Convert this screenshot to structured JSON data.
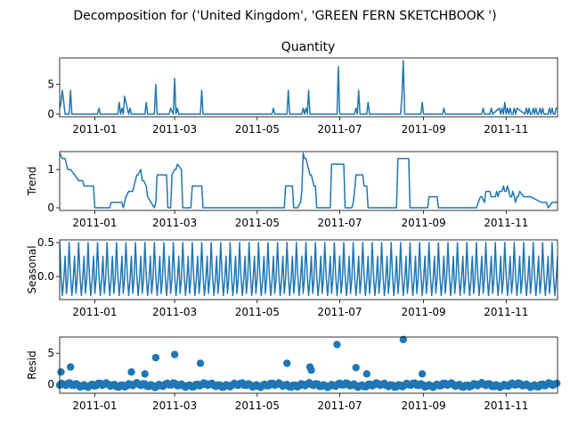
{
  "figure": {
    "title": "Decomposition for ('United Kingdom', 'GREEN FERN SKETCHBOOK ')"
  },
  "chart_data": [
    {
      "type": "line",
      "panel": "observed",
      "title": "Quantity",
      "ylabel": "",
      "xlim": [
        "2010-12-06",
        "2011-12-09"
      ],
      "ylim": [
        -0.45,
        9.45
      ],
      "yticks": [
        0,
        5
      ],
      "xticks": [
        "2011-01-01",
        "2011-03-01",
        "2011-05-01",
        "2011-07-01",
        "2011-09-01",
        "2011-11-01"
      ],
      "xtick_labels": [
        "2011-01",
        "2011-03",
        "2011-05",
        "2011-07",
        "2011-09",
        "2011-11"
      ],
      "color": "#1f77b4",
      "series": [
        {
          "x": [
            "2010-12-06",
            "2010-12-07",
            "2010-12-08",
            "2010-12-09",
            "2010-12-10",
            "2010-12-11",
            "2010-12-12",
            "2010-12-13",
            "2010-12-14",
            "2010-12-15",
            "2011-01-03",
            "2011-01-04",
            "2011-01-05",
            "2011-01-18",
            "2011-01-19",
            "2011-01-20",
            "2011-01-21",
            "2011-01-22",
            "2011-01-23",
            "2011-01-26",
            "2011-01-27",
            "2011-01-28",
            "2011-02-07",
            "2011-02-08",
            "2011-02-09",
            "2011-02-14",
            "2011-02-15",
            "2011-02-16",
            "2011-02-25",
            "2011-02-26",
            "2011-02-28",
            "2011-03-01",
            "2011-03-02",
            "2011-03-03",
            "2011-03-04",
            "2011-03-05",
            "2011-03-06",
            "2011-03-20",
            "2011-03-21",
            "2011-03-22",
            "2011-05-12",
            "2011-05-13",
            "2011-05-14",
            "2011-05-23",
            "2011-05-24",
            "2011-05-25",
            "2011-06-03",
            "2011-06-04",
            "2011-06-05",
            "2011-06-06",
            "2011-06-07",
            "2011-06-08",
            "2011-06-09",
            "2011-06-10",
            "2011-06-29",
            "2011-06-30",
            "2011-07-01",
            "2011-07-12",
            "2011-07-13",
            "2011-07-14",
            "2011-07-15",
            "2011-07-16",
            "2011-07-17",
            "2011-07-21",
            "2011-07-22",
            "2011-07-23",
            "2011-08-15",
            "2011-08-16",
            "2011-08-17",
            "2011-08-18",
            "2011-08-19",
            "2011-08-30",
            "2011-08-31",
            "2011-09-01",
            "2011-09-15",
            "2011-09-16",
            "2011-09-17",
            "2011-10-14",
            "2011-10-15",
            "2011-10-16",
            "2011-10-20",
            "2011-10-21",
            "2011-10-22",
            "2011-10-27",
            "2011-10-28",
            "2011-10-29",
            "2011-10-30",
            "2011-10-31",
            "2011-11-01",
            "2011-11-02",
            "2011-11-03",
            "2011-11-04",
            "2011-11-05",
            "2011-11-06",
            "2011-11-07",
            "2011-11-08",
            "2011-11-09",
            "2011-11-15",
            "2011-11-16",
            "2011-11-17",
            "2011-11-18",
            "2011-11-19",
            "2011-11-20",
            "2011-11-21",
            "2011-11-22",
            "2011-11-23",
            "2011-11-24",
            "2011-11-25",
            "2011-11-26",
            "2011-11-27",
            "2011-11-28",
            "2011-11-29",
            "2011-11-30",
            "2011-12-01",
            "2011-12-02",
            "2011-12-03",
            "2011-12-04",
            "2011-12-05",
            "2011-12-06",
            "2011-12-07",
            "2011-12-08",
            "2011-12-09"
          ],
          "y": [
            1,
            2,
            4,
            2,
            0,
            0,
            0,
            0,
            4,
            0,
            0,
            1,
            0,
            0,
            2,
            0,
            1,
            0,
            3,
            0,
            1,
            0,
            0,
            2,
            0,
            0,
            5,
            0,
            0,
            1,
            0,
            6,
            0,
            1,
            0,
            0,
            0,
            0,
            4,
            0,
            0,
            1,
            0,
            0,
            4,
            0,
            0,
            1,
            0,
            1,
            0,
            4,
            0,
            0,
            0,
            8,
            0,
            0,
            1,
            0,
            4,
            0,
            0,
            0,
            2,
            0,
            0,
            3,
            9,
            0,
            0,
            0,
            2,
            0,
            0,
            1,
            0,
            0,
            1,
            0,
            0,
            1,
            0,
            1,
            0,
            1,
            0,
            2,
            0,
            1,
            0,
            1,
            0,
            0,
            1,
            0,
            1,
            0,
            1,
            0,
            1,
            0,
            0,
            1,
            0,
            1,
            0,
            0,
            1,
            0,
            1,
            0,
            0,
            0,
            0,
            1,
            0,
            1,
            0,
            0,
            1,
            1
          ]
        }
      ]
    },
    {
      "type": "line",
      "panel": "trend",
      "title": "",
      "ylabel": "Trend",
      "xlim": [
        "2010-12-06",
        "2011-12-09"
      ],
      "ylim": [
        -0.07,
        1.47
      ],
      "yticks": [
        0,
        1
      ],
      "xticks": [
        "2011-01-01",
        "2011-03-01",
        "2011-05-01",
        "2011-07-01",
        "2011-09-01",
        "2011-11-01"
      ],
      "xtick_labels": [
        "2011-01",
        "2011-03",
        "2011-05",
        "2011-07",
        "2011-09",
        "2011-11"
      ],
      "color": "#1f77b4",
      "series": [
        {
          "x": [
            "2010-12-06",
            "2010-12-08",
            "2010-12-10",
            "2010-12-12",
            "2010-12-14",
            "2010-12-17",
            "2010-12-20",
            "2010-12-21",
            "2010-12-23",
            "2010-12-24",
            "2010-12-31",
            "2011-01-01",
            "2011-01-05",
            "2011-01-06",
            "2011-01-12",
            "2011-01-13",
            "2011-01-18",
            "2011-01-19",
            "2011-01-21",
            "2011-01-22",
            "2011-01-24",
            "2011-01-26",
            "2011-01-29",
            "2011-02-01",
            "2011-02-02",
            "2011-02-04",
            "2011-02-05",
            "2011-02-06",
            "2011-02-08",
            "2011-02-09",
            "2011-02-14",
            "2011-02-15",
            "2011-02-16",
            "2011-02-17",
            "2011-02-23",
            "2011-02-24",
            "2011-02-26",
            "2011-02-27",
            "2011-03-01",
            "2011-03-02",
            "2011-03-03",
            "2011-03-06",
            "2011-03-07",
            "2011-03-13",
            "2011-03-14",
            "2011-03-21",
            "2011-03-22",
            "2011-05-13",
            "2011-05-14",
            "2011-05-21",
            "2011-05-22",
            "2011-05-23",
            "2011-05-27",
            "2011-05-28",
            "2011-05-31",
            "2011-06-02",
            "2011-06-03",
            "2011-06-04",
            "2011-06-05",
            "2011-06-06",
            "2011-06-09",
            "2011-06-10",
            "2011-06-12",
            "2011-06-13",
            "2011-06-14",
            "2011-06-17",
            "2011-06-18",
            "2011-06-24",
            "2011-06-25",
            "2011-07-04",
            "2011-07-05",
            "2011-07-10",
            "2011-07-11",
            "2011-07-12",
            "2011-07-13",
            "2011-07-18",
            "2011-07-19",
            "2011-07-21",
            "2011-07-22",
            "2011-07-26",
            "2011-07-27",
            "2011-08-12",
            "2011-08-13",
            "2011-08-21",
            "2011-08-22",
            "2011-08-28",
            "2011-08-29",
            "2011-09-04",
            "2011-09-05",
            "2011-09-11",
            "2011-09-12",
            "2011-09-18",
            "2011-09-19",
            "2011-10-09",
            "2011-10-10",
            "2011-10-13",
            "2011-10-14",
            "2011-10-16",
            "2011-10-17",
            "2011-10-20",
            "2011-10-21",
            "2011-10-24",
            "2011-10-25",
            "2011-10-26",
            "2011-10-27",
            "2011-10-29",
            "2011-10-30",
            "2011-10-31",
            "2011-11-01",
            "2011-11-02",
            "2011-11-03",
            "2011-11-04",
            "2011-11-05",
            "2011-11-06",
            "2011-11-07",
            "2011-11-08",
            "2011-11-09",
            "2011-11-10",
            "2011-11-11",
            "2011-11-14",
            "2011-11-15",
            "2011-11-18",
            "2011-11-19",
            "2011-11-27",
            "2011-11-28",
            "2011-12-01",
            "2011-12-02",
            "2011-12-05",
            "2011-12-06",
            "2011-12-09"
          ],
          "y": [
            1.43,
            1.29,
            1.29,
            1.0,
            1.0,
            0.86,
            0.71,
            0.71,
            0.71,
            0.57,
            0.57,
            0.0,
            0.0,
            0.0,
            0.0,
            0.14,
            0.14,
            0.14,
            0.14,
            0.0,
            0.29,
            0.43,
            0.43,
            0.86,
            0.86,
            1.0,
            0.71,
            0.71,
            0.57,
            0.29,
            0.0,
            0.14,
            0.86,
            0.86,
            0.86,
            0.0,
            0.0,
            0.86,
            1.0,
            1.0,
            1.14,
            1.0,
            0.0,
            0.0,
            0.57,
            0.57,
            0.0,
            0.0,
            0.0,
            0.0,
            0.57,
            0.57,
            0.57,
            0.0,
            0.0,
            0.14,
            0.43,
            1.43,
            1.29,
            1.29,
            0.86,
            0.86,
            0.57,
            0.57,
            0.0,
            0.0,
            0.0,
            0.0,
            1.14,
            1.14,
            0.0,
            0.0,
            0.14,
            0.43,
            0.86,
            0.86,
            0.57,
            0.57,
            0.0,
            0.0,
            0.0,
            0.0,
            1.29,
            1.29,
            0.0,
            0.0,
            0.0,
            0.0,
            0.29,
            0.29,
            0.0,
            0.0,
            0.0,
            0.0,
            0.0,
            0.29,
            0.29,
            0.14,
            0.43,
            0.43,
            0.29,
            0.29,
            0.43,
            0.29,
            0.43,
            0.43,
            0.57,
            0.43,
            0.43,
            0.57,
            0.43,
            0.29,
            0.29,
            0.43,
            0.29,
            0.14,
            0.29,
            0.29,
            0.43,
            0.29,
            0.29,
            0.29,
            0.29,
            0.14,
            0.14,
            0.14,
            0.0,
            0.14,
            0.14,
            0.14
          ]
        }
      ]
    },
    {
      "type": "line",
      "panel": "seasonal",
      "title": "",
      "ylabel": "Seasonal",
      "xlim": [
        "2010-12-06",
        "2011-12-09"
      ],
      "ylim": [
        -0.34,
        0.54
      ],
      "yticks": [
        0.0,
        0.5
      ],
      "ytick_labels": [
        "0.0",
        "0.5"
      ],
      "xticks": [
        "2011-01-01",
        "2011-03-01",
        "2011-05-01",
        "2011-07-01",
        "2011-09-01",
        "2011-11-01"
      ],
      "xtick_labels": [
        "2011-01",
        "2011-03",
        "2011-05",
        "2011-07",
        "2011-09",
        "2011-11"
      ],
      "color": "#1f77b4",
      "period_days": 7,
      "pattern": [
        0.5,
        0.02,
        -0.28,
        -0.05,
        0.3,
        -0.25,
        -0.03
      ],
      "start": "2010-12-06",
      "end": "2011-12-09"
    },
    {
      "type": "scatter",
      "panel": "resid",
      "title": "",
      "ylabel": "Resid",
      "xlim": [
        "2010-12-06",
        "2011-12-09"
      ],
      "ylim": [
        -1.4,
        7.6
      ],
      "yticks": [
        0,
        5
      ],
      "xticks": [
        "2011-01-01",
        "2011-03-01",
        "2011-05-01",
        "2011-07-01",
        "2011-09-01",
        "2011-11-01"
      ],
      "xtick_labels": [
        "2011-01",
        "2011-03",
        "2011-05",
        "2011-07",
        "2011-09",
        "2011-11"
      ],
      "color": "#1f77b4",
      "baseline": {
        "start": "2010-12-06",
        "end": "2011-12-09",
        "step_days": 1.5,
        "amplitude": 0.35
      },
      "outliers": [
        {
          "x": "2010-12-07",
          "y": 2.0
        },
        {
          "x": "2010-12-14",
          "y": 2.8
        },
        {
          "x": "2011-01-28",
          "y": 2.0
        },
        {
          "x": "2011-02-07",
          "y": 1.7
        },
        {
          "x": "2011-02-15",
          "y": 4.3
        },
        {
          "x": "2011-03-01",
          "y": 4.8
        },
        {
          "x": "2011-03-20",
          "y": 3.4
        },
        {
          "x": "2011-05-23",
          "y": 3.4
        },
        {
          "x": "2011-06-09",
          "y": 2.8
        },
        {
          "x": "2011-06-10",
          "y": 2.3
        },
        {
          "x": "2011-06-29",
          "y": 6.4
        },
        {
          "x": "2011-07-13",
          "y": 2.7
        },
        {
          "x": "2011-07-21",
          "y": 1.7
        },
        {
          "x": "2011-08-17",
          "y": 7.2
        },
        {
          "x": "2011-08-31",
          "y": 1.7
        }
      ]
    }
  ]
}
